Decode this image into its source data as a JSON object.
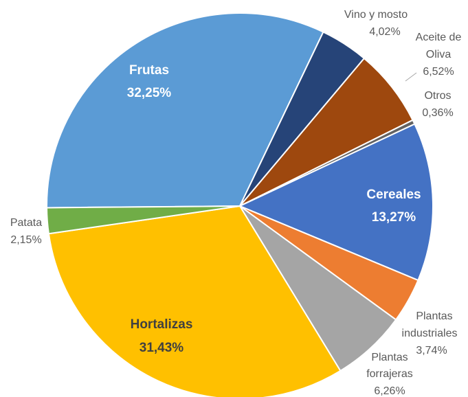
{
  "chart_data": {
    "type": "pie",
    "categories": [
      "Frutas",
      "Vino y mosto",
      "Aceite de Oliva",
      "Otros",
      "Cereales",
      "Plantas industriales",
      "Plantas forrajeras",
      "Hortalizas",
      "Patata"
    ],
    "values": [
      32.25,
      4.02,
      6.52,
      0.36,
      13.27,
      3.74,
      6.26,
      31.43,
      2.15
    ],
    "value_labels": [
      "32,25%",
      "4,02%",
      "6,52%",
      "0,36%",
      "13,27%",
      "3,74%",
      "6,26%",
      "31,43%",
      "2,15%"
    ],
    "colors": [
      "#5b9bd5",
      "#264478",
      "#9e480e",
      "#636363",
      "#4472c4",
      "#ed7d31",
      "#a5a5a5",
      "#ffc000",
      "#70ad47"
    ]
  }
}
